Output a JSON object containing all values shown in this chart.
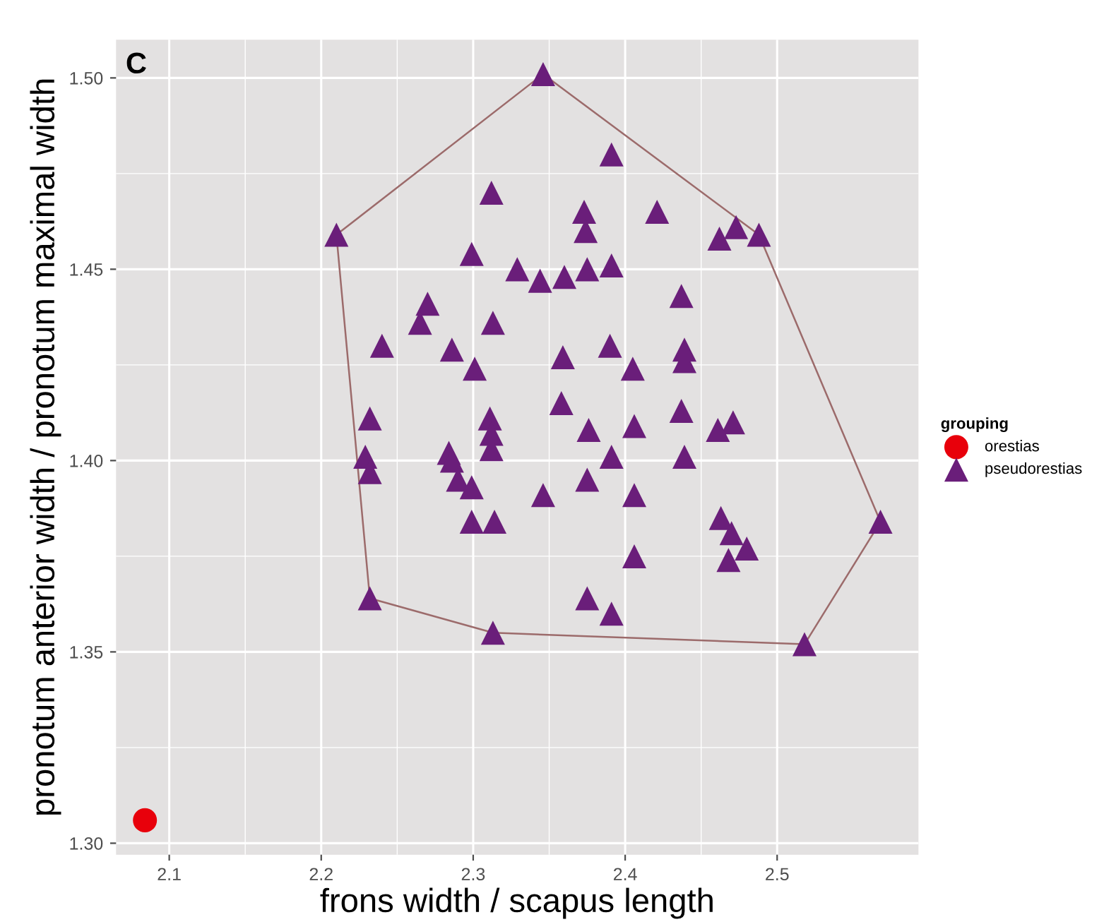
{
  "chart_data": {
    "type": "scatter",
    "title": "C",
    "xlabel": "frons width / scapus length",
    "ylabel": "pronotum anterior width / pronotum maximal width",
    "legend_title": "grouping",
    "legend": "right",
    "grid": true,
    "xlim": [
      2.065,
      2.593
    ],
    "ylim": [
      1.297,
      1.51
    ],
    "xticks": [
      2.1,
      2.2,
      2.3,
      2.4,
      2.5
    ],
    "yticks": [
      {
        "value": 1.3,
        "label": "1.30"
      },
      1.35,
      {
        "value": 1.4,
        "label": "1.40"
      },
      1.45,
      {
        "value": 1.5,
        "label": "1.50"
      }
    ],
    "series": [
      {
        "name": "orestias",
        "marker": "circle",
        "color": "#e8000b",
        "x": [
          2.084
        ],
        "values": [
          1.306
        ]
      },
      {
        "name": "pseudorestias",
        "marker": "triangle",
        "color": "#6a1e7a",
        "x": [
          2.346,
          2.21,
          2.391,
          2.312,
          2.373,
          2.374,
          2.421,
          2.473,
          2.462,
          2.488,
          2.299,
          2.329,
          2.344,
          2.36,
          2.375,
          2.391,
          2.437,
          2.27,
          2.265,
          2.313,
          2.24,
          2.286,
          2.301,
          2.359,
          2.39,
          2.405,
          2.439,
          2.439,
          2.358,
          2.437,
          2.232,
          2.311,
          2.376,
          2.406,
          2.312,
          2.312,
          2.471,
          2.461,
          2.229,
          2.284,
          2.286,
          2.391,
          2.439,
          2.232,
          2.29,
          2.299,
          2.346,
          2.375,
          2.406,
          2.299,
          2.314,
          2.463,
          2.47,
          2.48,
          2.468,
          2.568,
          2.406,
          2.375,
          2.391,
          2.232,
          2.313,
          2.518
        ],
        "values": [
          1.501,
          1.459,
          1.48,
          1.47,
          1.465,
          1.46,
          1.465,
          1.461,
          1.458,
          1.459,
          1.454,
          1.45,
          1.447,
          1.448,
          1.45,
          1.451,
          1.443,
          1.441,
          1.436,
          1.436,
          1.43,
          1.429,
          1.424,
          1.427,
          1.43,
          1.424,
          1.429,
          1.426,
          1.415,
          1.413,
          1.411,
          1.411,
          1.408,
          1.409,
          1.407,
          1.403,
          1.41,
          1.408,
          1.401,
          1.402,
          1.4,
          1.401,
          1.401,
          1.397,
          1.395,
          1.393,
          1.391,
          1.395,
          1.391,
          1.384,
          1.384,
          1.385,
          1.381,
          1.377,
          1.374,
          1.384,
          1.375,
          1.364,
          1.36,
          1.364,
          1.355,
          1.352
        ]
      },
      {
        "type": "line",
        "color": "#9c6b6b",
        "x": [
          2.21,
          2.346,
          2.488,
          2.568
        ],
        "values": [
          1.459,
          1.501,
          1.459,
          1.384
        ]
      },
      {
        "type": "line",
        "color": "#9c6b6b",
        "x": [
          2.21,
          2.232,
          2.313,
          2.518,
          2.568
        ],
        "values": [
          1.459,
          1.364,
          1.355,
          1.352,
          1.384
        ]
      }
    ]
  }
}
